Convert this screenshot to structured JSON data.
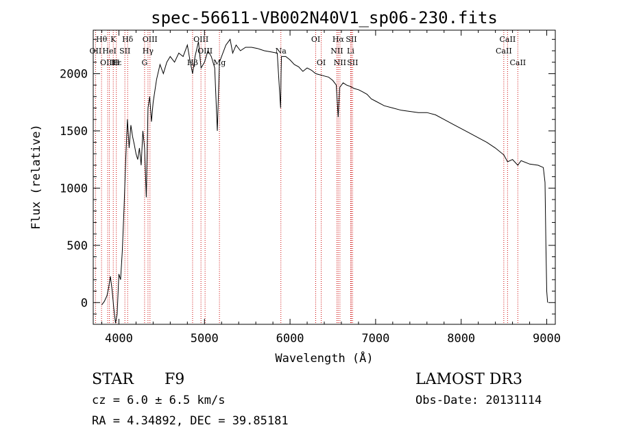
{
  "chart_data": {
    "type": "line",
    "title": "spec-56611-VB002N40V1_sp06-230.fits",
    "xlabel": "Wavelength (Å)",
    "ylabel": "Flux (relative)",
    "xlim": [
      3700,
      9100
    ],
    "ylim": [
      -190,
      2380
    ],
    "xticks": [
      4000,
      5000,
      6000,
      7000,
      8000,
      9000
    ],
    "yticks": [
      0,
      500,
      1000,
      1500,
      2000
    ],
    "xtick_labels": [
      "4000",
      "5000",
      "6000",
      "7000",
      "8000",
      "9000"
    ],
    "ytick_labels": [
      "0",
      "500",
      "1000",
      "1500",
      "2000"
    ],
    "series": [
      {
        "name": "flux",
        "x": [
          3800,
          3830,
          3860,
          3880,
          3900,
          3920,
          3940,
          3960,
          3980,
          4000,
          4020,
          4040,
          4060,
          4080,
          4100,
          4120,
          4140,
          4160,
          4180,
          4200,
          4220,
          4240,
          4260,
          4280,
          4300,
          4320,
          4340,
          4360,
          4380,
          4400,
          4440,
          4480,
          4520,
          4560,
          4600,
          4650,
          4700,
          4750,
          4800,
          4830,
          4861,
          4890,
          4930,
          4960,
          5000,
          5040,
          5080,
          5120,
          5150,
          5175,
          5200,
          5250,
          5300,
          5330,
          5370,
          5420,
          5480,
          5550,
          5620,
          5700,
          5780,
          5850,
          5890,
          5895,
          5900,
          5950,
          6000,
          6050,
          6100,
          6150,
          6200,
          6250,
          6300,
          6350,
          6400,
          6450,
          6500,
          6540,
          6563,
          6580,
          6620,
          6660,
          6700,
          6750,
          6800,
          6850,
          6900,
          6950,
          7000,
          7100,
          7200,
          7300,
          7400,
          7500,
          7600,
          7700,
          7800,
          7900,
          8000,
          8100,
          8200,
          8300,
          8400,
          8498,
          8542,
          8600,
          8662,
          8700,
          8800,
          8900,
          8960,
          8980,
          8990,
          9000,
          9010
        ],
        "y": [
          -20,
          10,
          60,
          130,
          230,
          110,
          -50,
          -180,
          -100,
          250,
          200,
          450,
          820,
          1250,
          1600,
          1350,
          1550,
          1450,
          1380,
          1300,
          1250,
          1350,
          1200,
          1500,
          1350,
          920,
          1700,
          1800,
          1580,
          1750,
          1950,
          2080,
          2000,
          2100,
          2150,
          2100,
          2180,
          2150,
          2250,
          2120,
          2000,
          2150,
          2280,
          2050,
          2100,
          2200,
          2150,
          2050,
          1500,
          2100,
          2150,
          2250,
          2300,
          2180,
          2250,
          2200,
          2230,
          2230,
          2220,
          2200,
          2190,
          2180,
          1700,
          2000,
          2150,
          2150,
          2120,
          2080,
          2060,
          2020,
          2050,
          2030,
          2000,
          1990,
          1980,
          1970,
          1940,
          1900,
          1620,
          1880,
          1920,
          1900,
          1890,
          1870,
          1860,
          1840,
          1820,
          1780,
          1760,
          1720,
          1700,
          1680,
          1670,
          1660,
          1660,
          1640,
          1600,
          1560,
          1520,
          1480,
          1440,
          1400,
          1350,
          1290,
          1230,
          1250,
          1200,
          1240,
          1210,
          1200,
          1180,
          1050,
          500,
          100,
          0
        ]
      }
    ],
    "line_labels": [
      {
        "text": "Hθ",
        "x": 3797,
        "row": 1
      },
      {
        "text": "K",
        "x": 3934,
        "row": 1
      },
      {
        "text": "Hδ",
        "x": 4102,
        "row": 1
      },
      {
        "text": "OIII",
        "x": 4363,
        "row": 1
      },
      {
        "text": "OIII",
        "x": 4959,
        "row": 1
      },
      {
        "text": "OI",
        "x": 6300,
        "row": 1
      },
      {
        "text": "Hα",
        "x": 6563,
        "row": 1
      },
      {
        "text": "SII",
        "x": 6716,
        "row": 1
      },
      {
        "text": "CaII",
        "x": 8542,
        "row": 1
      },
      {
        "text": "OII",
        "x": 3727,
        "row": 2
      },
      {
        "text": "HeI",
        "x": 3889,
        "row": 2
      },
      {
        "text": "SII",
        "x": 4070,
        "row": 2
      },
      {
        "text": "Hγ",
        "x": 4340,
        "row": 2
      },
      {
        "text": "OIII",
        "x": 5007,
        "row": 2
      },
      {
        "text": "Na",
        "x": 5893,
        "row": 2
      },
      {
        "text": "NII",
        "x": 6548,
        "row": 2
      },
      {
        "text": "Li",
        "x": 6708,
        "row": 2
      },
      {
        "text": "CaII",
        "x": 8498,
        "row": 2
      },
      {
        "text": "OIII",
        "x": 3869,
        "row": 3
      },
      {
        "text": "Hε",
        "x": 3970,
        "row": 3
      },
      {
        "text": "H",
        "x": 3969,
        "row": 3
      },
      {
        "text": "G",
        "x": 4300,
        "row": 3
      },
      {
        "text": "Hβ",
        "x": 4861,
        "row": 3
      },
      {
        "text": "Mg",
        "x": 5175,
        "row": 3
      },
      {
        "text": "OI",
        "x": 6364,
        "row": 3
      },
      {
        "text": "NII",
        "x": 6583,
        "row": 3
      },
      {
        "text": "SII",
        "x": 6731,
        "row": 3
      },
      {
        "text": "CaII",
        "x": 8662,
        "row": 3
      }
    ],
    "line_markers": [
      3727,
      3797,
      3869,
      3889,
      3934,
      3970,
      4070,
      4102,
      4300,
      4340,
      4363,
      4861,
      4959,
      5007,
      5175,
      5893,
      6300,
      6364,
      6548,
      6563,
      6583,
      6708,
      6716,
      6731,
      8498,
      8542,
      8662
    ],
    "marker_color": "#cc0000"
  },
  "info": {
    "object_type": "STAR",
    "subclass": "F9",
    "survey": "LAMOST DR3",
    "cz": "cz = 6.0 ± 6.5 km/s",
    "obs_date": "Obs-Date: 20131114",
    "coords": "RA =   4.34892, DEC =  39.85181"
  }
}
